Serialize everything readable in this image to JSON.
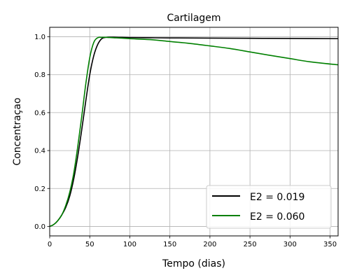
{
  "chart_data": {
    "type": "line",
    "title": "Cartilagem",
    "xlabel": "Tempo (dias)",
    "ylabel": "Concentraçao",
    "xlim": [
      0,
      360
    ],
    "ylim": [
      -0.05,
      1.05
    ],
    "xticks": [
      0,
      50,
      100,
      150,
      200,
      250,
      300,
      350
    ],
    "yticks": [
      0.0,
      0.2,
      0.4,
      0.6,
      0.8,
      1.0
    ],
    "xtick_labels": [
      "0",
      "50",
      "100",
      "150",
      "200",
      "250",
      "300",
      "350"
    ],
    "ytick_labels": [
      "0.0",
      "0.2",
      "0.4",
      "0.6",
      "0.8",
      "1.0"
    ],
    "grid": true,
    "legend_position": "bottom-right",
    "series": [
      {
        "name": "E2 = 0.019",
        "color": "#000000",
        "x": [
          0,
          5,
          10,
          15,
          20,
          25,
          30,
          35,
          40,
          45,
          50,
          55,
          60,
          65,
          70,
          75,
          80,
          90,
          100,
          125,
          150,
          200,
          250,
          300,
          360
        ],
        "y": [
          0.0,
          0.01,
          0.03,
          0.06,
          0.1,
          0.16,
          0.25,
          0.37,
          0.51,
          0.66,
          0.8,
          0.9,
          0.96,
          0.99,
          0.997,
          0.998,
          0.998,
          0.997,
          0.996,
          0.995,
          0.994,
          0.993,
          0.992,
          0.991,
          0.99
        ]
      },
      {
        "name": "E2 = 0.060",
        "color": "#008000",
        "x": [
          0,
          5,
          10,
          15,
          20,
          25,
          30,
          35,
          40,
          45,
          50,
          55,
          60,
          65,
          70,
          75,
          80,
          90,
          100,
          125,
          150,
          175,
          200,
          225,
          250,
          275,
          300,
          325,
          360
        ],
        "y": [
          0.0,
          0.01,
          0.03,
          0.06,
          0.11,
          0.18,
          0.28,
          0.42,
          0.58,
          0.75,
          0.89,
          0.97,
          0.995,
          0.997,
          0.997,
          0.996,
          0.995,
          0.993,
          0.99,
          0.985,
          0.975,
          0.965,
          0.952,
          0.938,
          0.92,
          0.902,
          0.885,
          0.868,
          0.852
        ]
      }
    ]
  }
}
